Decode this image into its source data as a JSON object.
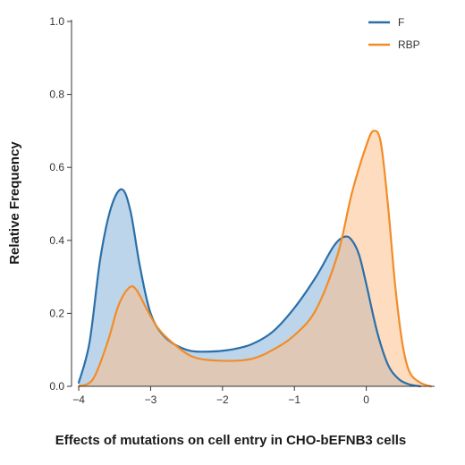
{
  "chart_data": {
    "type": "area",
    "xlabel": "Effects of mutations on cell entry in CHO-bEFNB3 cells",
    "ylabel": "Relative Frequency",
    "xlim": [
      -4.1,
      0.95
    ],
    "ylim": [
      0,
      1.0
    ],
    "x_ticks": [
      -4,
      -3,
      -2,
      -1,
      0
    ],
    "x_tick_labels": [
      "−4",
      "−3",
      "−2",
      "−1",
      "0"
    ],
    "y_ticks": [
      0.0,
      0.2,
      0.4,
      0.6,
      0.8,
      1.0
    ],
    "y_tick_labels": [
      "0.0",
      "0.2",
      "0.4",
      "0.6",
      "0.8",
      "1.0"
    ],
    "grid": false,
    "legend_position": "top-right",
    "series": [
      {
        "name": "F",
        "color": "#2b6fa8",
        "fill": "#9fc3e3",
        "x": [
          -4.0,
          -3.85,
          -3.7,
          -3.55,
          -3.4,
          -3.28,
          -3.15,
          -3.0,
          -2.8,
          -2.5,
          -2.2,
          -1.9,
          -1.6,
          -1.3,
          -1.0,
          -0.7,
          -0.45,
          -0.3,
          -0.2,
          -0.1,
          0.0,
          0.15,
          0.3,
          0.45,
          0.6,
          0.75
        ],
        "y": [
          0.01,
          0.12,
          0.35,
          0.49,
          0.54,
          0.48,
          0.33,
          0.2,
          0.135,
          0.1,
          0.095,
          0.1,
          0.115,
          0.15,
          0.215,
          0.3,
          0.385,
          0.41,
          0.4,
          0.36,
          0.28,
          0.15,
          0.06,
          0.02,
          0.005,
          0.0
        ]
      },
      {
        "name": "RBP",
        "color": "#f28c28",
        "fill": "#fbc08a",
        "x": [
          -4.0,
          -3.8,
          -3.6,
          -3.45,
          -3.3,
          -3.2,
          -3.05,
          -2.9,
          -2.7,
          -2.4,
          -2.0,
          -1.6,
          -1.3,
          -1.0,
          -0.7,
          -0.4,
          -0.2,
          0.0,
          0.1,
          0.2,
          0.3,
          0.4,
          0.5,
          0.6,
          0.75,
          0.9
        ],
        "y": [
          0.0,
          0.02,
          0.12,
          0.22,
          0.27,
          0.265,
          0.21,
          0.16,
          0.12,
          0.08,
          0.07,
          0.075,
          0.1,
          0.14,
          0.21,
          0.36,
          0.53,
          0.66,
          0.7,
          0.67,
          0.5,
          0.28,
          0.12,
          0.04,
          0.01,
          0.0
        ]
      }
    ]
  }
}
